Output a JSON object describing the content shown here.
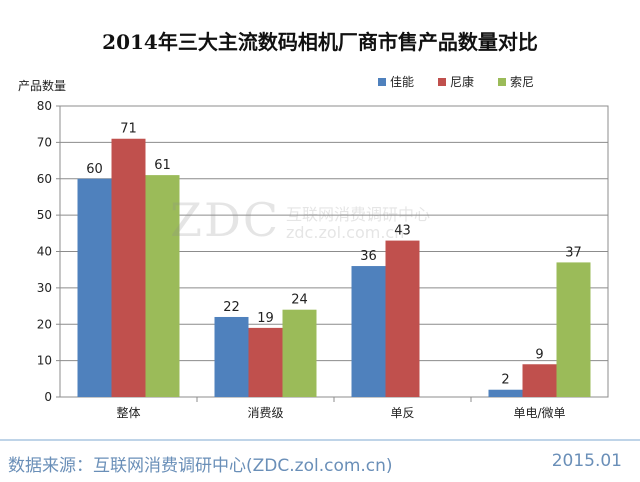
{
  "chart_data": {
    "type": "bar",
    "title": "2014年三大主流数码相机厂商市售产品数量对比",
    "ylabel": "产品数量",
    "xlabel": "",
    "ylim": [
      0,
      80
    ],
    "yticks": [
      0,
      10,
      20,
      30,
      40,
      50,
      60,
      70,
      80
    ],
    "grid": true,
    "legend_position": "top-right",
    "categories": [
      "整体",
      "消费级",
      "单反",
      "单电/微单"
    ],
    "series": [
      {
        "name": "佳能",
        "color": "#4f81bd",
        "values": [
          60,
          22,
          36,
          2
        ]
      },
      {
        "name": "尼康",
        "color": "#c0504d",
        "values": [
          71,
          19,
          43,
          9
        ]
      },
      {
        "name": "索尼",
        "color": "#9bbb59",
        "values": [
          61,
          24,
          null,
          37
        ]
      }
    ]
  },
  "footer": {
    "source": "数据来源：互联网消费调研中心(ZDC.zol.com.cn)",
    "date": "2015.01"
  },
  "watermark": {
    "logo": "ZDC",
    "line1": "互联网消费调研中心",
    "line2": "zdc.zol.com.cn"
  }
}
